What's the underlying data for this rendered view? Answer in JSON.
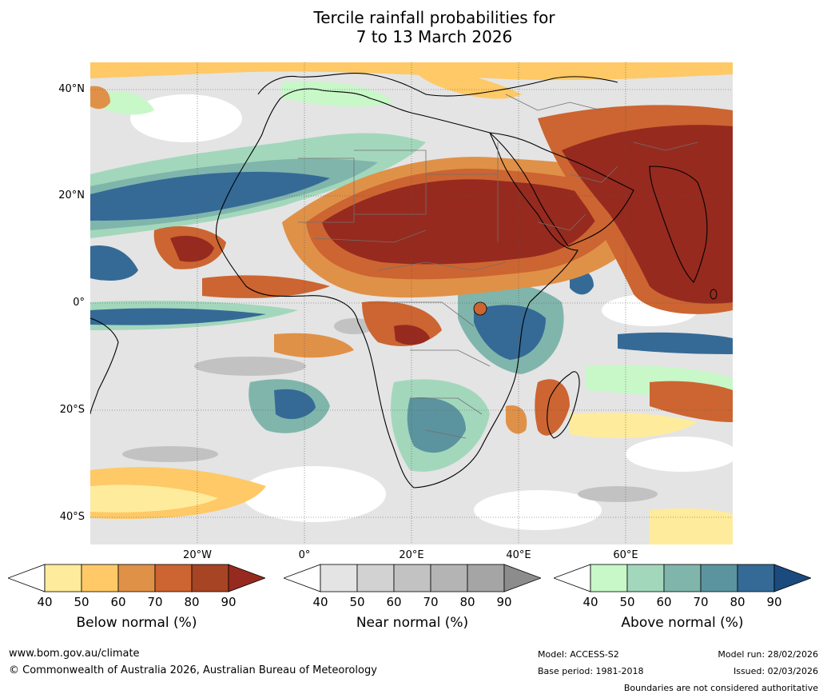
{
  "title_line1": "Tercile rainfall probabilities for",
  "title_line2": "7 to 13 March 2026",
  "map": {
    "lat_labels": [
      "40°N",
      "20°N",
      "0°",
      "20°S",
      "40°S"
    ],
    "lon_labels": [
      "20°W",
      "0°",
      "20°E",
      "40°E",
      "60°E"
    ]
  },
  "colorbars": [
    {
      "title": "Below normal (%)",
      "ticks": [
        "40",
        "50",
        "60",
        "70",
        "80",
        "90"
      ],
      "colors": [
        "#ffffff",
        "#ffeb9c",
        "#fec966",
        "#e09148",
        "#cc6531",
        "#a74423",
        "#962a1f"
      ]
    },
    {
      "title": "Near normal (%)",
      "ticks": [
        "40",
        "50",
        "60",
        "70",
        "80",
        "90"
      ],
      "colors": [
        "#ffffff",
        "#e4e4e4",
        "#d2d2d2",
        "#c2c2c2",
        "#b4b4b4",
        "#a5a5a5",
        "#8c8c8c"
      ]
    },
    {
      "title": "Above normal (%)",
      "ticks": [
        "40",
        "50",
        "60",
        "70",
        "80",
        "90"
      ],
      "colors": [
        "#ffffff",
        "#c8f7c8",
        "#a3d7bc",
        "#80b5ac",
        "#5b949f",
        "#356a96",
        "#1b4a7e"
      ]
    }
  ],
  "footer": {
    "website": "www.bom.gov.au/climate",
    "copyright": "© Commonwealth of Australia 2026, Australian Bureau of Meteorology",
    "model": "Model: ACCESS-S2",
    "base_period": "Base period: 1981-2018",
    "model_run": "Model run: 28/02/2026",
    "issued": "Issued: 02/03/2026",
    "disclaimer": "Boundaries are not considered authoritative"
  }
}
